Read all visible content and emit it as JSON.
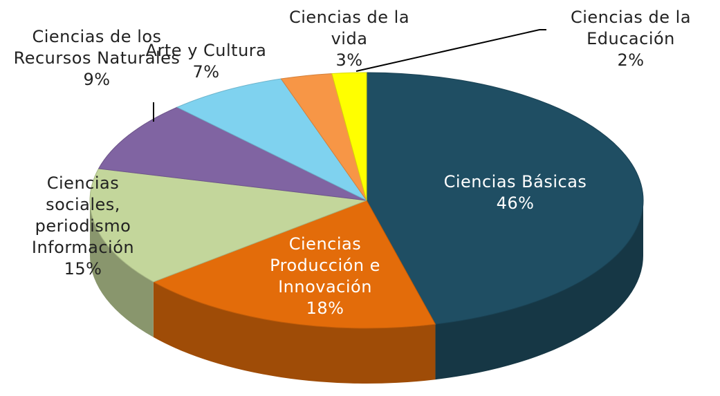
{
  "chart_data": {
    "type": "pie",
    "categories": [
      "Ciencias Básicas",
      "Ciencias Producción e Innovación",
      "Ciencias sociales, periodismo Información",
      "Ciencias de los Recursos Naturales",
      "Arte y Cultura",
      "Ciencias de la vida",
      "Ciencias de la Educación"
    ],
    "values": [
      46,
      18,
      15,
      9,
      7,
      3,
      2
    ],
    "value_labels": [
      "46%",
      "18%",
      "15%",
      "9%",
      "7%",
      "3%",
      "2%"
    ],
    "colors": [
      "#1f4e63",
      "#e36c0a",
      "#c3d69b",
      "#8064a2",
      "#7fd2ef",
      "#f79646",
      "#ffff00"
    ]
  }
}
